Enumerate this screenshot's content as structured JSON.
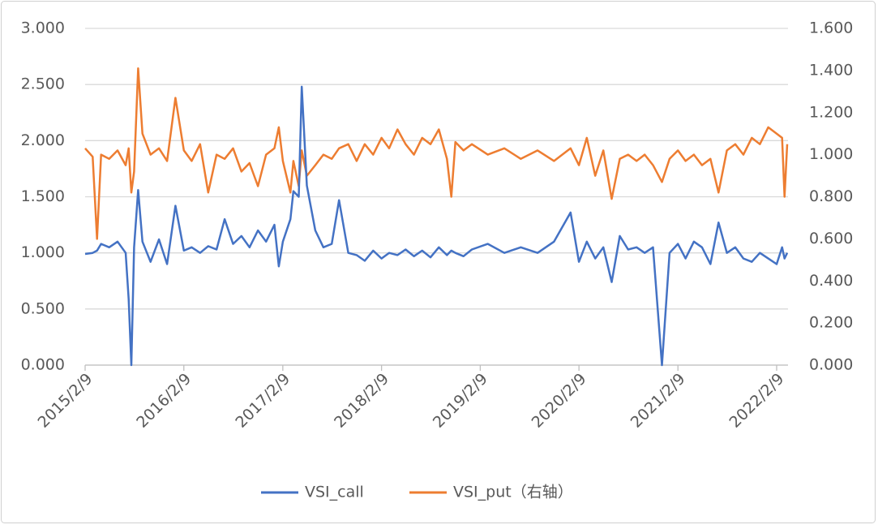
{
  "chart_data": {
    "type": "line",
    "x": [
      "2015/2/9",
      "2015/3/9",
      "2015/3/25",
      "2015/4/9",
      "2015/5/9",
      "2015/6/9",
      "2015/7/9",
      "2015/7/20",
      "2015/7/30",
      "2015/8/9",
      "2015/8/24",
      "2015/9/9",
      "2015/10/9",
      "2015/11/9",
      "2015/12/9",
      "2016/1/9",
      "2016/2/9",
      "2016/3/9",
      "2016/4/9",
      "2016/5/9",
      "2016/6/9",
      "2016/7/9",
      "2016/8/9",
      "2016/9/9",
      "2016/10/9",
      "2016/11/9",
      "2016/12/9",
      "2017/1/9",
      "2017/1/25",
      "2017/2/9",
      "2017/3/9",
      "2017/3/20",
      "2017/4/9",
      "2017/4/20",
      "2017/5/9",
      "2017/6/9",
      "2017/7/9",
      "2017/8/9",
      "2017/9/5",
      "2017/10/9",
      "2017/11/9",
      "2017/12/9",
      "2018/1/9",
      "2018/2/9",
      "2018/3/9",
      "2018/4/9",
      "2018/5/9",
      "2018/6/9",
      "2018/7/9",
      "2018/8/9",
      "2018/9/9",
      "2018/10/9",
      "2018/10/25",
      "2018/11/9",
      "2018/12/9",
      "2019/1/9",
      "2019/3/9",
      "2019/5/9",
      "2019/7/9",
      "2019/9/9",
      "2019/11/9",
      "2020/1/9",
      "2020/2/9",
      "2020/3/9",
      "2020/4/9",
      "2020/5/9",
      "2020/6/9",
      "2020/7/9",
      "2020/8/9",
      "2020/9/9",
      "2020/10/9",
      "2020/11/9",
      "2020/12/12",
      "2021/1/9",
      "2021/2/9",
      "2021/3/9",
      "2021/4/9",
      "2021/5/9",
      "2021/6/9",
      "2021/7/9",
      "2021/8/9",
      "2021/9/9",
      "2021/10/9",
      "2021/11/9",
      "2021/12/9",
      "2022/1/9",
      "2022/2/9",
      "2022/3/1",
      "2022/3/10",
      "2022/3/20"
    ],
    "series": [
      {
        "name": "VSI_call",
        "color": "#4472c4",
        "axis": "y",
        "values": [
          0.99,
          1.0,
          1.02,
          1.08,
          1.05,
          1.1,
          1.0,
          0.59,
          0.0,
          1.05,
          1.56,
          1.1,
          0.92,
          1.12,
          0.9,
          1.42,
          1.02,
          1.05,
          1.0,
          1.06,
          1.03,
          1.3,
          1.08,
          1.15,
          1.05,
          1.2,
          1.1,
          1.25,
          0.88,
          1.1,
          1.3,
          1.55,
          1.5,
          2.48,
          1.6,
          1.2,
          1.05,
          1.08,
          1.47,
          1.0,
          0.98,
          0.93,
          1.02,
          0.95,
          1.0,
          0.98,
          1.03,
          0.97,
          1.02,
          0.96,
          1.05,
          0.98,
          1.02,
          1.0,
          0.97,
          1.03,
          1.08,
          1.0,
          1.05,
          1.0,
          1.1,
          1.36,
          0.92,
          1.1,
          0.95,
          1.05,
          0.74,
          1.15,
          1.03,
          1.05,
          1.0,
          1.05,
          0.0,
          1.0,
          1.08,
          0.95,
          1.1,
          1.05,
          0.9,
          1.27,
          1.0,
          1.05,
          0.95,
          0.92,
          1.0,
          0.95,
          0.9,
          1.05,
          0.95,
          1.0
        ]
      },
      {
        "name": "VSI_put（右轴）",
        "color": "#ed7d31",
        "axis": "y2",
        "values": [
          1.03,
          0.99,
          0.6,
          1.0,
          0.98,
          1.02,
          0.95,
          1.03,
          0.82,
          0.92,
          1.41,
          1.1,
          1.0,
          1.03,
          0.97,
          1.27,
          1.02,
          0.97,
          1.05,
          0.82,
          1.0,
          0.98,
          1.03,
          0.92,
          0.96,
          0.85,
          1.0,
          1.03,
          1.13,
          0.97,
          0.82,
          0.97,
          0.85,
          1.02,
          0.9,
          0.95,
          1.0,
          0.98,
          1.03,
          1.05,
          0.97,
          1.05,
          1.0,
          1.08,
          1.03,
          1.12,
          1.05,
          1.0,
          1.08,
          1.05,
          1.12,
          0.98,
          0.8,
          1.06,
          1.02,
          1.05,
          1.0,
          1.03,
          0.98,
          1.02,
          0.97,
          1.03,
          0.95,
          1.08,
          0.9,
          1.02,
          0.79,
          0.98,
          1.0,
          0.97,
          1.0,
          0.95,
          0.87,
          0.98,
          1.02,
          0.97,
          1.0,
          0.95,
          0.98,
          0.82,
          1.02,
          1.05,
          1.0,
          1.08,
          1.05,
          1.13,
          1.1,
          1.08,
          0.8,
          1.05
        ]
      }
    ],
    "xlim": [
      "2015/2/9",
      "2022/3/23"
    ],
    "xticks": [
      "2015/2/9",
      "2016/2/9",
      "2017/2/9",
      "2018/2/9",
      "2019/2/9",
      "2020/2/9",
      "2021/2/9",
      "2022/2/9"
    ],
    "ylim": [
      0,
      3
    ],
    "yticks": [
      {
        "value": 0,
        "label": "0.000"
      },
      {
        "value": 0.5,
        "label": "0.500"
      },
      {
        "value": 1,
        "label": "1.000"
      },
      {
        "value": 1.5,
        "label": "1.500"
      },
      {
        "value": 2,
        "label": "2.000"
      },
      {
        "value": 2.5,
        "label": "2.500"
      },
      {
        "value": 3,
        "label": "3.000"
      }
    ],
    "y2lim": [
      0,
      1.6
    ],
    "y2ticks": [
      {
        "value": 0,
        "label": "0.000"
      },
      {
        "value": 0.2,
        "label": "0.200"
      },
      {
        "value": 0.4,
        "label": "0.400"
      },
      {
        "value": 0.6,
        "label": "0.600"
      },
      {
        "value": 0.8,
        "label": "0.800"
      },
      {
        "value": 1,
        "label": "1.000"
      },
      {
        "value": 1.2,
        "label": "1.200"
      },
      {
        "value": 1.4,
        "label": "1.400"
      },
      {
        "value": 1.6,
        "label": "1.600"
      }
    ],
    "grid": true,
    "legend": "bottom"
  }
}
